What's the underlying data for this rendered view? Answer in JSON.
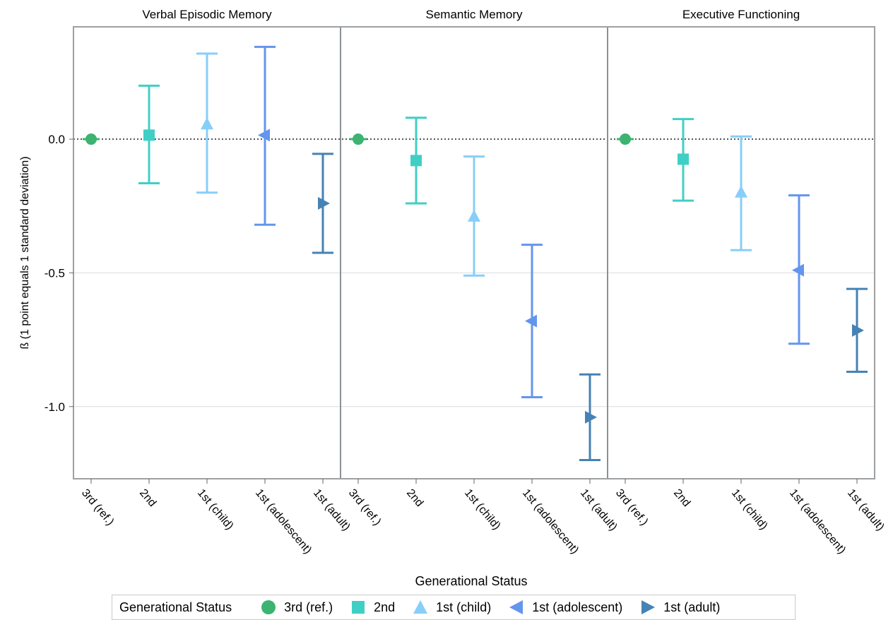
{
  "chart_data": {
    "type": "scatter",
    "subtype": "point-estimate-with-error-bars",
    "ylabel": "ß (1 point equals 1 standard deviation)",
    "xlabel": "Generational Status",
    "ylim": [
      -1.27,
      0.42
    ],
    "yticks": [
      0.0,
      -0.5,
      -1.0
    ],
    "ytick_labels": [
      "0.0",
      "-0.5",
      "-1.0"
    ],
    "reference_line": 0,
    "grid": "horizontal",
    "categories": [
      "3rd (ref.)",
      "2nd",
      "1st (child)",
      "1st (adolescent)",
      "1st (adult)"
    ],
    "colors": [
      "#3cb371",
      "#40cfc4",
      "#87cefa",
      "#6495ed",
      "#4682b4"
    ],
    "markers": [
      "circle",
      "square",
      "triangle-up",
      "triangle-left",
      "triangle-right"
    ],
    "panels": [
      {
        "title": "Verbal Episodic Memory",
        "estimates": [
          0.0,
          0.015,
          0.055,
          0.015,
          -0.24
        ],
        "lower": [
          0.0,
          -0.165,
          -0.2,
          -0.32,
          -0.425
        ],
        "upper": [
          0.0,
          0.2,
          0.32,
          0.345,
          -0.055
        ]
      },
      {
        "title": "Semantic Memory",
        "estimates": [
          0.0,
          -0.08,
          -0.29,
          -0.68,
          -1.04
        ],
        "lower": [
          0.0,
          -0.24,
          -0.51,
          -0.965,
          -1.2
        ],
        "upper": [
          0.0,
          0.08,
          -0.065,
          -0.395,
          -0.88
        ]
      },
      {
        "title": "Executive Functioning",
        "estimates": [
          0.0,
          -0.075,
          -0.2,
          -0.49,
          -0.715
        ],
        "lower": [
          0.0,
          -0.23,
          -0.415,
          -0.765,
          -0.87
        ],
        "upper": [
          0.0,
          0.075,
          0.01,
          -0.21,
          -0.56
        ]
      }
    ],
    "legend": {
      "title": "Generational Status",
      "placement": "bottom",
      "items": [
        "3rd (ref.)",
        "2nd",
        "1st (child)",
        "1st (adolescent)",
        "1st (adult)"
      ]
    }
  }
}
